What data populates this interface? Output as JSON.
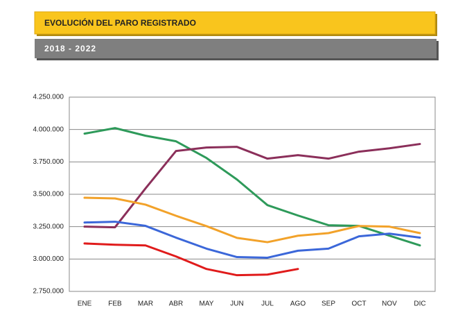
{
  "chart_data": {
    "type": "line",
    "title": "EVOLUCIÓN DEL PARO REGISTRADO",
    "subtitle": "2018 - 2022",
    "categories": [
      "ENE",
      "FEB",
      "MAR",
      "ABR",
      "MAY",
      "JUN",
      "JUL",
      "AGO",
      "SEP",
      "OCT",
      "NOV",
      "DIC"
    ],
    "series": [
      {
        "color": "#2e9a5a",
        "values": [
          3968000,
          4011000,
          3952000,
          3909000,
          3780000,
          3614000,
          3416000,
          3336000,
          3261000,
          3256000,
          3180000,
          3105000
        ]
      },
      {
        "color": "#8b2f5a",
        "values": [
          3250000,
          3245000,
          3545000,
          3834000,
          3861000,
          3866000,
          3775000,
          3802000,
          3775000,
          3829000,
          3855000,
          3888000
        ]
      },
      {
        "color": "#f2a22a",
        "values": [
          3473000,
          3468000,
          3420000,
          3334000,
          3254000,
          3163000,
          3130000,
          3180000,
          3200000,
          3255000,
          3250000,
          3200000
        ]
      },
      {
        "color": "#3b67d9",
        "values": [
          3282000,
          3288000,
          3256000,
          3165000,
          3080000,
          3015000,
          3010000,
          3064000,
          3080000,
          3175000,
          3196000,
          3165000
        ]
      },
      {
        "color": "#e01b1b",
        "values": [
          3120000,
          3110000,
          3105000,
          3020000,
          2923000,
          2875000,
          2880000,
          2923000,
          null,
          null,
          null,
          null
        ]
      }
    ],
    "ylim": [
      2750000,
      4250000
    ],
    "yticks": [
      {
        "value": 2750000,
        "label": "2.750.000"
      },
      {
        "value": 3000000,
        "label": "3.000.000"
      },
      {
        "value": 3250000,
        "label": "3.250.000"
      },
      {
        "value": 3500000,
        "label": "3.500.000"
      },
      {
        "value": 3750000,
        "label": "3.750.000"
      },
      {
        "value": 4000000,
        "label": "4.000.000"
      },
      {
        "value": 4250000,
        "label": "4.250.000"
      }
    ],
    "grid": true
  }
}
